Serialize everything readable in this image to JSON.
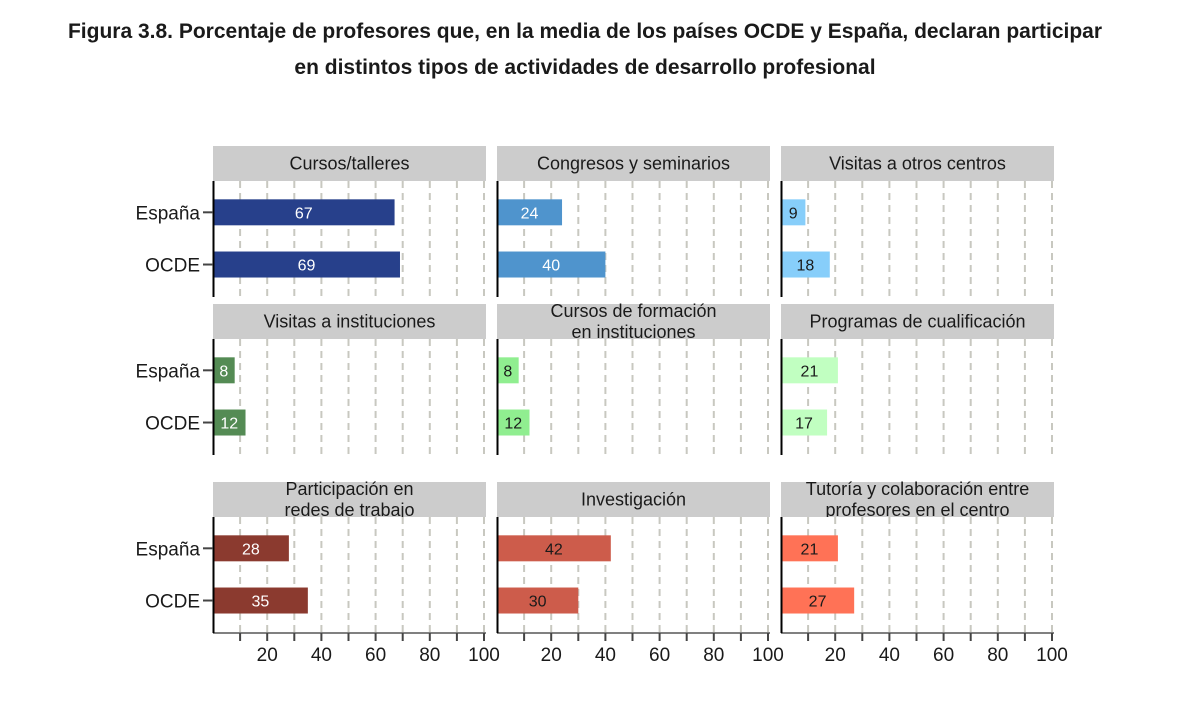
{
  "title_line1": "Figura 3.8. Porcentaje de profesores que, en la media de los países OCDE y España, declaran participar",
  "title_line2": "en distintos tipos de actividades de desarrollo profesional",
  "chart_data": {
    "type": "bar",
    "orientation": "horizontal",
    "facets": "3x3",
    "categories": [
      "España",
      "OCDE"
    ],
    "xlim": [
      0,
      100
    ],
    "xticks": [
      20,
      40,
      60,
      80,
      100
    ],
    "grid": "vertical dashed",
    "panels": [
      {
        "title": [
          "Cursos/talleres"
        ],
        "color": "#27408B",
        "label_color": "#ffffff",
        "values": [
          67,
          69
        ]
      },
      {
        "title": [
          "Congresos y seminarios"
        ],
        "color": "#4F94CD",
        "label_color": "#ffffff",
        "values": [
          24,
          40
        ]
      },
      {
        "title": [
          "Visitas a otros centros"
        ],
        "color": "#87CEFA",
        "label_color": "#1a1a1a",
        "values": [
          9,
          18
        ]
      },
      {
        "title": [
          "Visitas a instituciones"
        ],
        "color": "#548B54",
        "label_color": "#ffffff",
        "values": [
          8,
          12
        ]
      },
      {
        "title": [
          "Cursos de formación",
          "en instituciones"
        ],
        "color": "#90EE90",
        "label_color": "#1a1a1a",
        "values": [
          8,
          12
        ]
      },
      {
        "title": [
          "Programas de cualificación"
        ],
        "color": "#C1FFC1",
        "label_color": "#1a1a1a",
        "values": [
          21,
          17
        ]
      },
      {
        "title": [
          "Participación en",
          "redes de trabajo"
        ],
        "color": "#8B3A2F",
        "label_color": "#ffffff",
        "values": [
          28,
          35
        ]
      },
      {
        "title": [
          "Investigación"
        ],
        "color": "#CD5C4B",
        "label_color": "#1a1a1a",
        "values": [
          42,
          30
        ]
      },
      {
        "title": [
          "Tutoría y colaboración entre",
          "profesores en el centro"
        ],
        "color": "#FF7256",
        "label_color": "#1a1a1a",
        "values": [
          21,
          27
        ]
      }
    ]
  }
}
